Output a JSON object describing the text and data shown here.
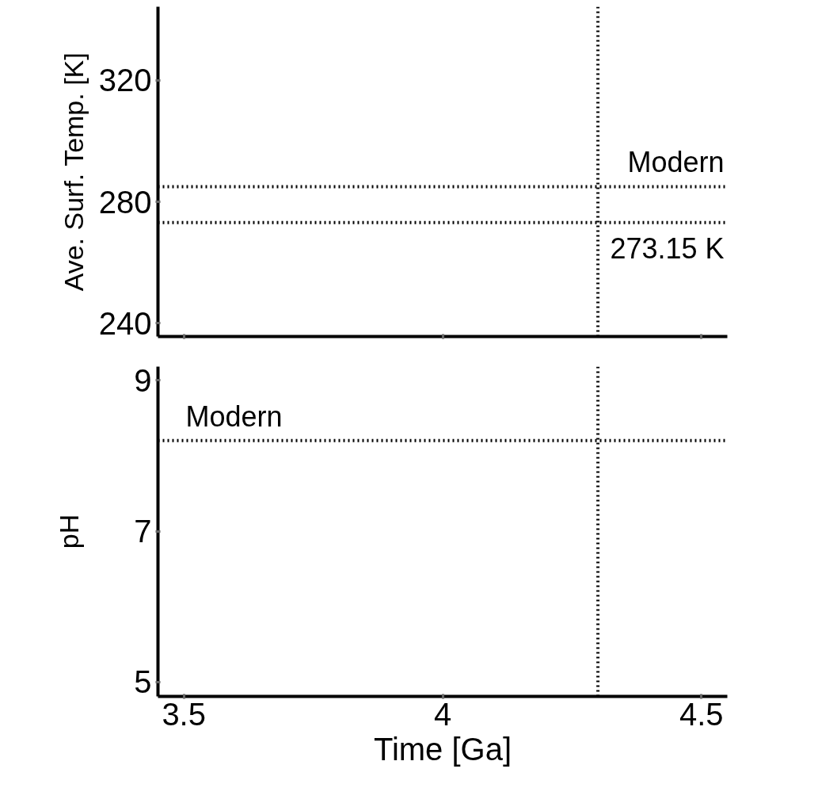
{
  "chart_data": [
    {
      "type": "line",
      "ylabel": "Ave. Surf. Temp. [K]",
      "xlim": [
        3.45,
        4.55
      ],
      "ylim": [
        235.6,
        344.3
      ],
      "xticks": [
        3.5,
        4,
        4.5
      ],
      "yticks": [
        240,
        280,
        320
      ],
      "tick_labels": "y",
      "grid": false,
      "ref_lines": [
        {
          "axis": "x",
          "value": 4.3,
          "color": "#000000",
          "line_style": "dotted"
        },
        {
          "axis": "y",
          "value": 285,
          "label": "Modern",
          "color": "#000000",
          "line_style": "dotted"
        },
        {
          "axis": "y",
          "value": 273.15,
          "label": "273.15 K",
          "color": "#000000",
          "line_style": "dotted"
        }
      ]
    },
    {
      "type": "line",
      "xlabel": "Time [Ga]",
      "ylabel": "pH",
      "xlim": [
        3.45,
        4.55
      ],
      "ylim": [
        4.81,
        9.18
      ],
      "xticks": [
        3.5,
        4,
        4.5
      ],
      "yticks": [
        5,
        7,
        9
      ],
      "grid": false,
      "ref_lines": [
        {
          "axis": "x",
          "value": 4.3,
          "color": "#000000",
          "line_style": "dotted"
        },
        {
          "axis": "y",
          "value": 8.2,
          "label": "Modern",
          "color": "#000000",
          "line_style": "dotted"
        }
      ]
    }
  ]
}
